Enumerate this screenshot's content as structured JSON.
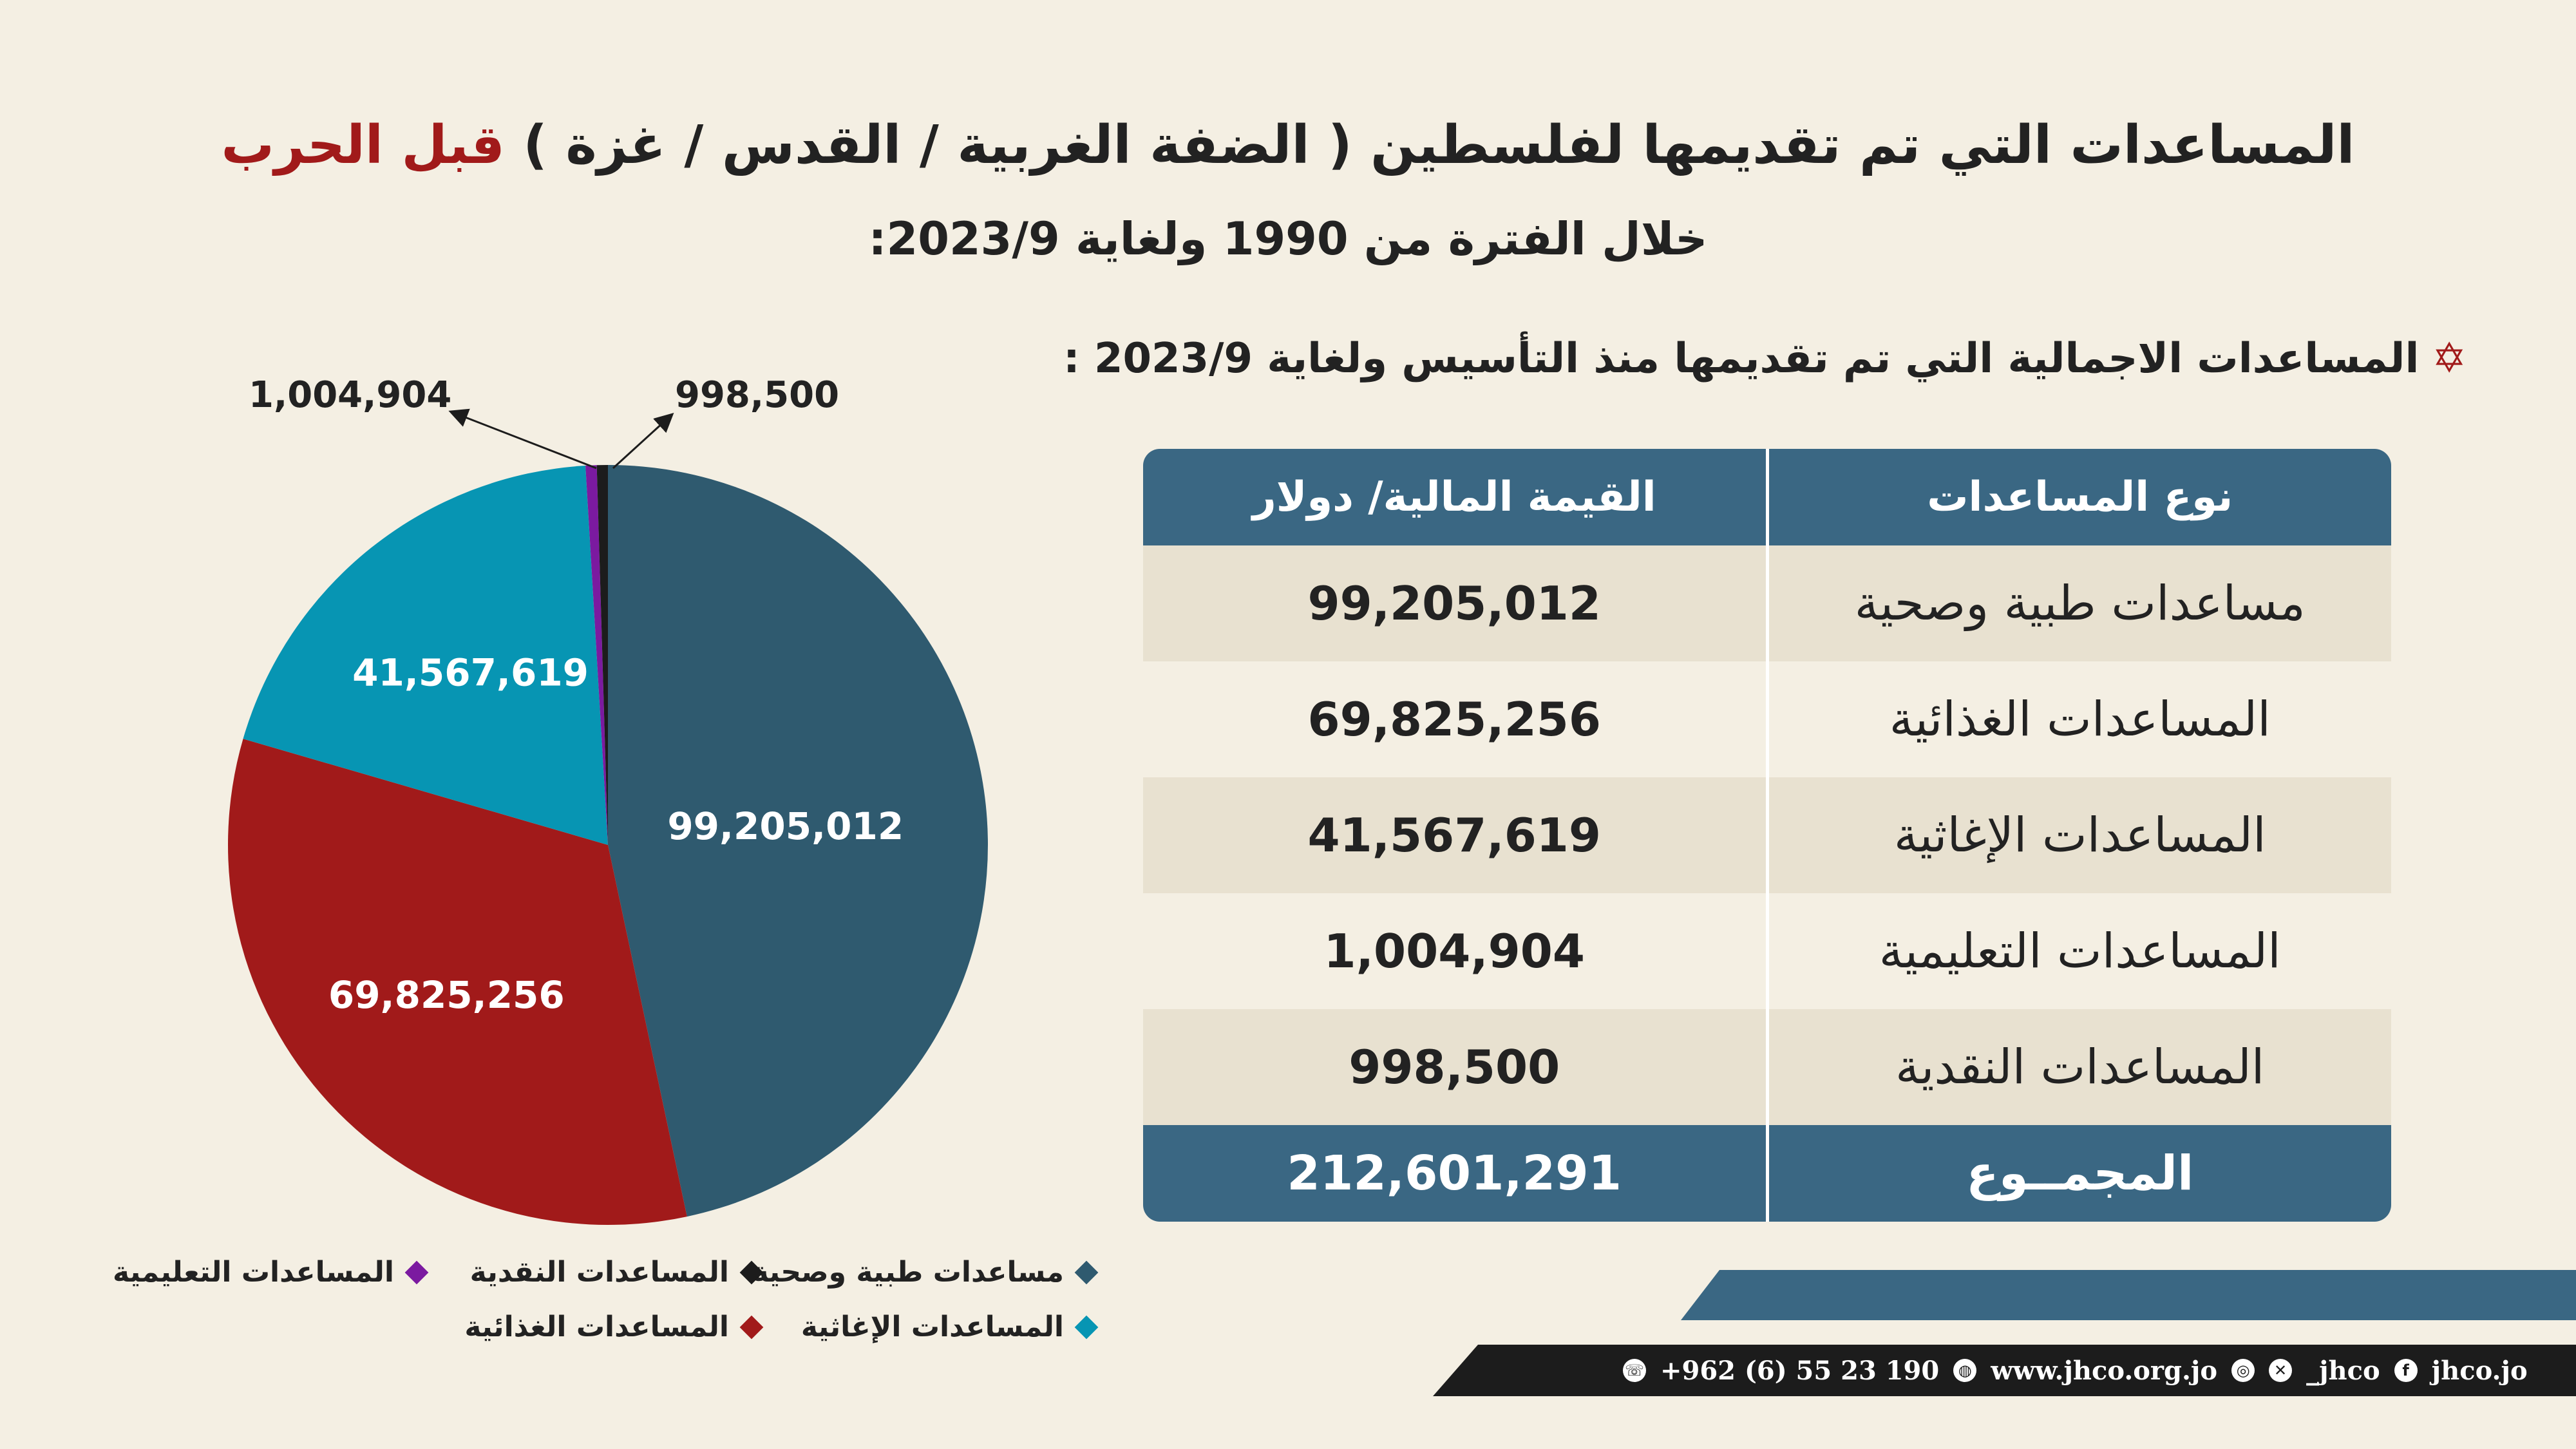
{
  "header": {
    "title_main": "المساعدات التي تم تقديمها لفلسطين ( الضفة الغربية / القدس / غزة )",
    "title_highlight": "قبل الحرب",
    "subtitle": "خلال الفترة من 1990 ولغاية 2023/9:"
  },
  "section": {
    "star": "✡",
    "heading": "المساعدات الاجمالية التي تم تقديمها منذ التأسيس ولغاية 2023/9 :"
  },
  "table": {
    "col_type": "نوع المساعدات",
    "col_value": "القيمة المالية/ دولار",
    "rows": [
      {
        "type": "مساعدات طبية وصحية",
        "value": "99,205,012"
      },
      {
        "type": "المساعدات الغذائية",
        "value": "69,825,256"
      },
      {
        "type": "المساعدات الإغاثية",
        "value": "41,567,619"
      },
      {
        "type": "المساعدات التعليمية",
        "value": "1,004,904"
      },
      {
        "type": "المساعدات النقدية",
        "value": "998,500"
      }
    ],
    "total_label": "المجمــوع",
    "total_value": "212,601,291"
  },
  "chart_data": {
    "type": "pie",
    "title": "",
    "slices": [
      {
        "label": "مساعدات طبية وصحية",
        "value": 99205012,
        "display": "99,205,012",
        "color": "#2f5a6f"
      },
      {
        "label": "المساعدات الغذائية",
        "value": 69825256,
        "display": "69,825,256",
        "color": "#a11a1a"
      },
      {
        "label": "المساعدات الإغاثية",
        "value": 41567619,
        "display": "41,567,619",
        "color": "#0795b3"
      },
      {
        "label": "المساعدات التعليمية",
        "value": 1004904,
        "display": "1,004,904",
        "color": "#7b1aa0"
      },
      {
        "label": "المساعدات النقدية",
        "value": 998500,
        "display": "998,500",
        "color": "#1c1c1c"
      }
    ],
    "legend": [
      {
        "label": "مساعدات طبية وصحية",
        "color": "#2f5a6f"
      },
      {
        "label": "المساعدات النقدية",
        "color": "#1c1c1c"
      },
      {
        "label": "المساعدات التعليمية",
        "color": "#7b1aa0"
      },
      {
        "label": "المساعدات الإغاثية",
        "color": "#0795b3"
      },
      {
        "label": "المساعدات الغذائية",
        "color": "#a11a1a"
      }
    ]
  },
  "footer": {
    "phone": "+962 (6) 55 23 190",
    "website": "www.jhco.org.jo",
    "social_handle": "_jhco",
    "facebook": "jhco.jo"
  }
}
